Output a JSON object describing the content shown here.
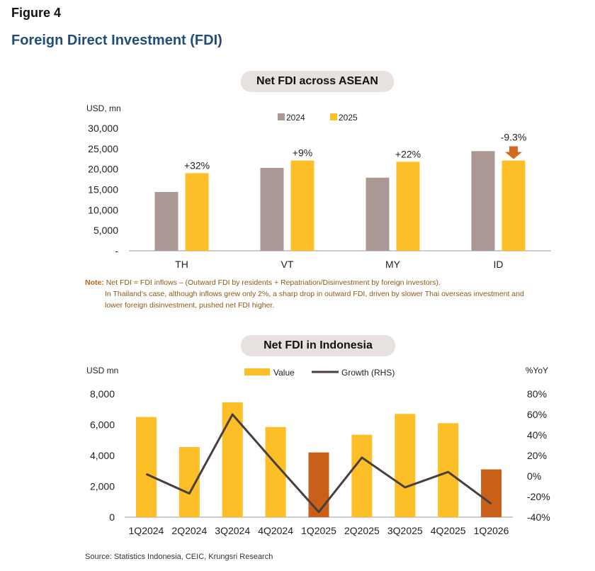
{
  "figure_label": "Figure 4",
  "figure_title": "Foreign Direct Investment (FDI)",
  "note": {
    "label": "Note",
    "line1": "Net FDI = FDI inflows – (Outward FDI by residents + Repatriation/Disinvestment by foreign investors).",
    "line2": "In Thailand’s case, although inflows grew only 2%, a sharp drop in outward FDI, driven by slower Thai overseas investment and lower foreign disinvestment, pushed net FDI higher."
  },
  "source": "Source: Statistics Indonesia, CEIC, Krungsri Research",
  "colors": {
    "bar2024": "#ab9894",
    "bar2025": "#fcbf27",
    "highlight": "#c8601a",
    "line": "#4a3f3b",
    "arrow": "#d2691e"
  },
  "chart_data": [
    {
      "type": "bar",
      "title": "Net FDI across ASEAN",
      "ylabel": "USD, mn",
      "categories": [
        "TH",
        "VT",
        "MY",
        "ID"
      ],
      "series": [
        {
          "name": "2024",
          "values": [
            14400,
            20300,
            17900,
            24400
          ]
        },
        {
          "name": "2025",
          "values": [
            19000,
            22100,
            21800,
            22100
          ]
        }
      ],
      "annotations": [
        "+32%",
        "+9%",
        "+22%",
        "-9.3%"
      ],
      "ylim": [
        0,
        30000
      ],
      "yticks": [
        0,
        5000,
        10000,
        15000,
        20000,
        25000,
        30000
      ],
      "ytick_labels": [
        "-",
        "5,000",
        "10,000",
        "15,000",
        "20,000",
        "25,000",
        "30,000"
      ],
      "legend": "top-center",
      "grid": false
    },
    {
      "type": "bar",
      "title": "Net FDI in Indonesia",
      "ylabel": "USD mn",
      "ylabel_right": "%YoY",
      "categories": [
        "1Q2024",
        "2Q2024",
        "3Q2024",
        "4Q2024",
        "1Q2025",
        "2Q2025",
        "3Q2025",
        "4Q2025",
        "1Q2026"
      ],
      "series": [
        {
          "name": "Value",
          "values": [
            6500,
            4550,
            7450,
            5850,
            4200,
            5350,
            6700,
            6100,
            3100
          ]
        },
        {
          "name": "Growth (RHS)",
          "type": "line",
          "values": [
            2,
            -17,
            60,
            12,
            -35,
            18,
            -11,
            4,
            -27
          ]
        }
      ],
      "highlighted_bars": [
        4,
        8
      ],
      "ylim": [
        0,
        8000
      ],
      "yticks": [
        0,
        2000,
        4000,
        6000,
        8000
      ],
      "ytick_labels": [
        "0",
        "2,000",
        "4,000",
        "6,000",
        "8,000"
      ],
      "y2lim": [
        -40,
        80
      ],
      "y2ticks": [
        -40,
        -20,
        0,
        20,
        40,
        60,
        80
      ],
      "y2tick_labels": [
        "-40%",
        "-20%",
        "0%",
        "20%",
        "40%",
        "60%",
        "80%"
      ],
      "legend": "top-center",
      "grid": false
    }
  ]
}
